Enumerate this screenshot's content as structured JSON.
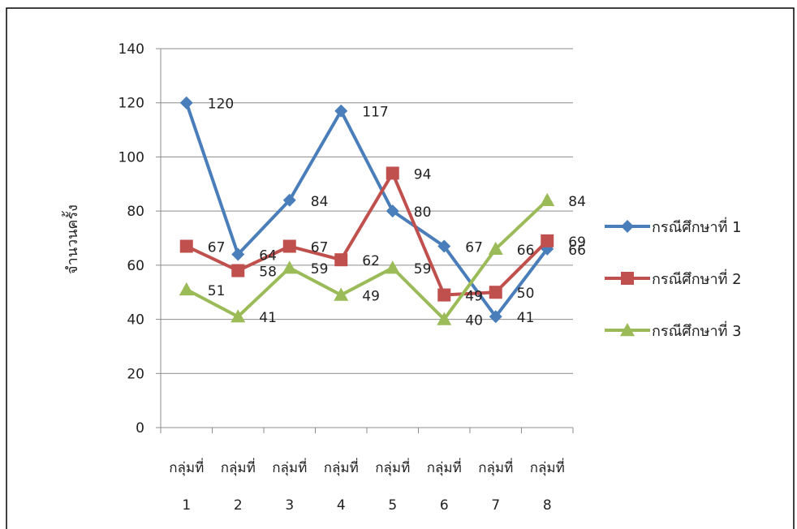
{
  "chart_data": {
    "type": "line",
    "title": "",
    "xlabel": "",
    "ylabel": "จำนวนครั้ง",
    "ylim": [
      0,
      140
    ],
    "yticks": [
      0,
      20,
      40,
      60,
      80,
      100,
      120,
      140
    ],
    "categories": [
      {
        "line1": "กลุ่มที่",
        "line2": "1"
      },
      {
        "line1": "กลุ่มที่",
        "line2": "2"
      },
      {
        "line1": "กลุ่มที่",
        "line2": "3"
      },
      {
        "line1": "กลุ่มที่",
        "line2": "4"
      },
      {
        "line1": "กลุ่มที่",
        "line2": "5"
      },
      {
        "line1": "กลุ่มที่",
        "line2": "6"
      },
      {
        "line1": "กลุ่มที่",
        "line2": "7"
      },
      {
        "line1": "กลุ่มที่",
        "line2": "8"
      }
    ],
    "grid": true,
    "legend": "right",
    "series": [
      {
        "name": "กรณีศึกษาที่ 1",
        "color": "#4a7ebb",
        "marker": "diamond",
        "values": [
          120,
          64,
          84,
          117,
          80,
          67,
          41,
          66
        ]
      },
      {
        "name": "กรณีศึกษาที่ 2",
        "color": "#c0504d",
        "marker": "square",
        "values": [
          67,
          58,
          67,
          62,
          94,
          49,
          50,
          69
        ]
      },
      {
        "name": "กรณีศึกษาที่ 3",
        "color": "#9bbb59",
        "marker": "triangle",
        "values": [
          51,
          41,
          59,
          49,
          59,
          40,
          66,
          84
        ]
      }
    ]
  }
}
